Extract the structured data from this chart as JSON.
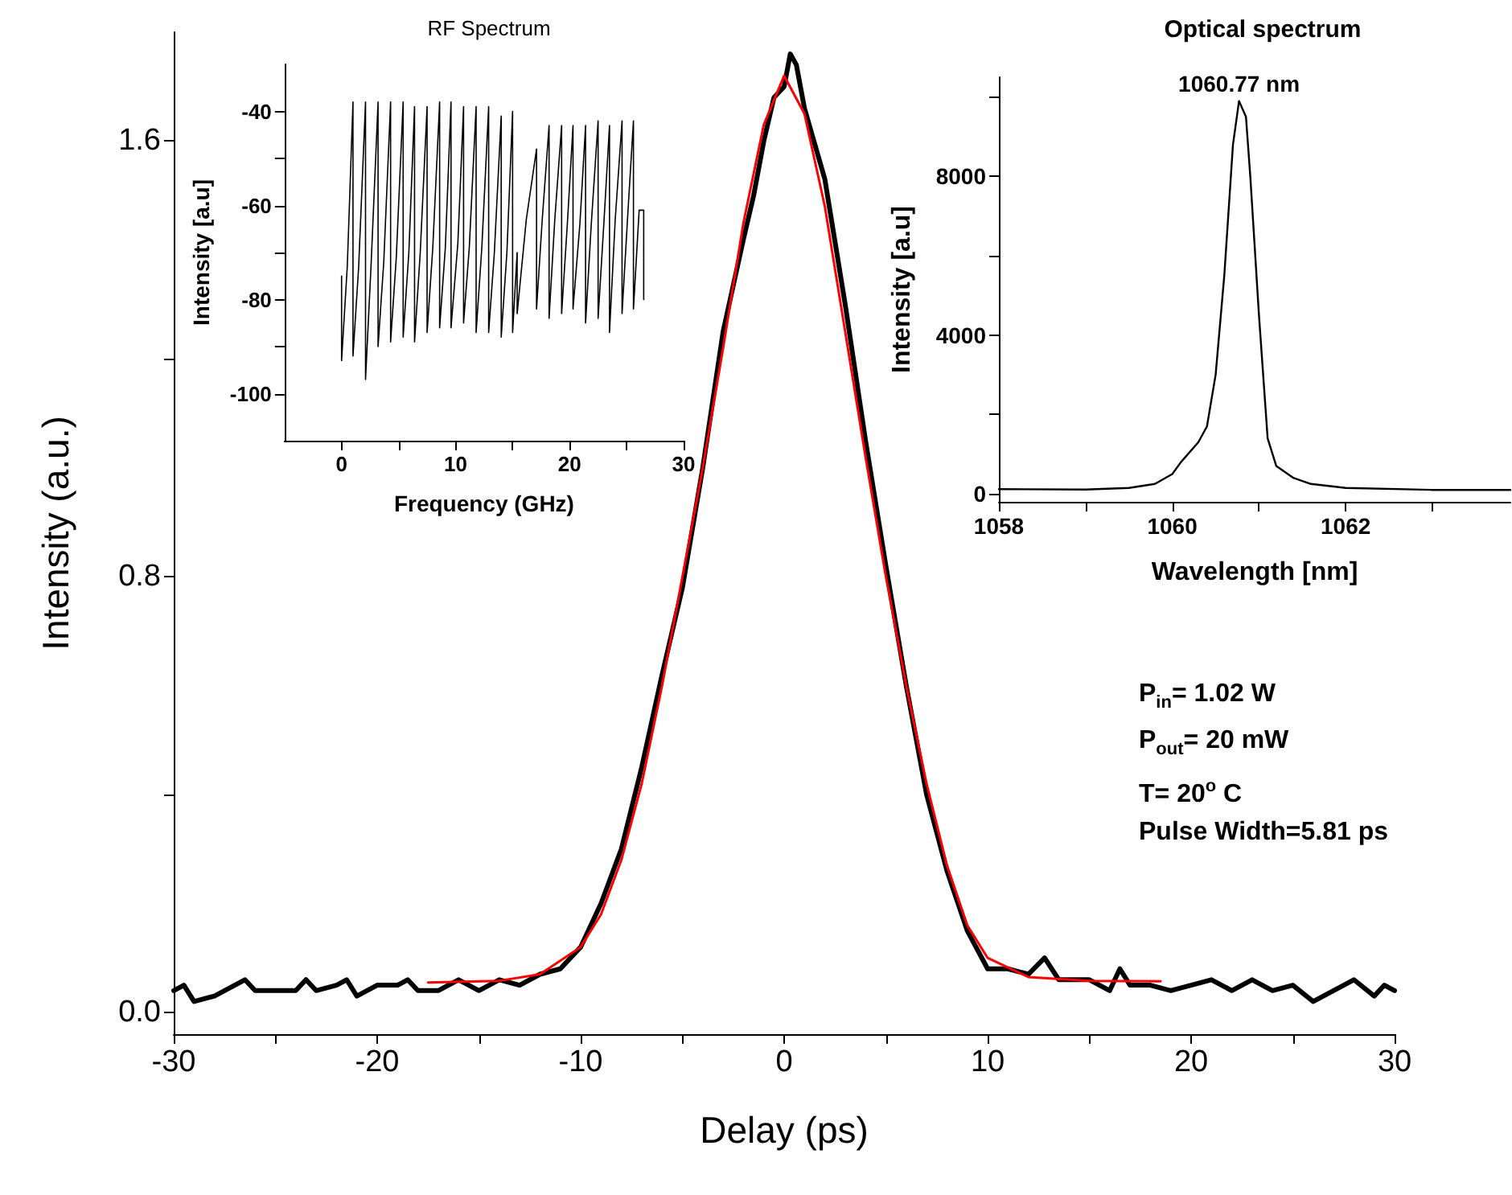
{
  "chart_data": [
    {
      "type": "line",
      "xlabel": "Delay (ps)",
      "ylabel": "Intensity (a.u.)",
      "xlim": [
        -30,
        30
      ],
      "xticks": [
        -30,
        {
          "value": -25,
          "label": null
        },
        -20,
        {
          "value": -15,
          "label": null
        },
        -10,
        {
          "value": -5,
          "label": null
        },
        0,
        {
          "value": 5,
          "label": null
        },
        10,
        {
          "value": 15,
          "label": null
        },
        20,
        {
          "value": 25,
          "label": null
        },
        30
      ],
      "ylim": [
        -0.04,
        1.8
      ],
      "yticks": [
        {
          "value": 0,
          "label": "0.0"
        },
        {
          "value": 0.4,
          "label": null
        },
        {
          "value": 0.8,
          "label": "0.8"
        },
        {
          "value": 1.2,
          "label": null
        },
        {
          "value": 1.6,
          "label": "1.6"
        }
      ],
      "grid": false,
      "marker": "none",
      "line_style": "solid",
      "annotations": [
        "P$_{in}$= 1.02 W",
        "P$_{out}$= 20 mW",
        "T= 20$^{o}$ C",
        "Pulse Width=5.81 ps"
      ],
      "series": [
        {
          "color": "#000000",
          "x": [
            -30,
            -29.5,
            -29,
            -28,
            -27,
            -26.5,
            -26,
            -24,
            -23.5,
            -23,
            -22,
            -21.5,
            -21,
            -20,
            -19,
            -18.5,
            -18,
            -17,
            -16,
            -15,
            -14,
            -13,
            -12,
            -11,
            -10,
            -9,
            -8,
            -7,
            -6,
            -5,
            -4,
            -3,
            -2,
            -1.5,
            -1,
            -0.5,
            0,
            0.3,
            0.6,
            1,
            2,
            3,
            4,
            5,
            6,
            7,
            8,
            9,
            10,
            11,
            12,
            12.8,
            13.5,
            15,
            16,
            16.5,
            17,
            18,
            19,
            20,
            21,
            22,
            23,
            24,
            25,
            26,
            27,
            28,
            29,
            29.5,
            30
          ],
          "values": [
            0.04,
            0.05,
            0.02,
            0.03,
            0.05,
            0.06,
            0.04,
            0.04,
            0.06,
            0.04,
            0.05,
            0.06,
            0.03,
            0.05,
            0.05,
            0.06,
            0.04,
            0.04,
            0.06,
            0.04,
            0.06,
            0.05,
            0.07,
            0.08,
            0.12,
            0.2,
            0.3,
            0.45,
            0.62,
            0.78,
            1.0,
            1.25,
            1.42,
            1.5,
            1.6,
            1.68,
            1.7,
            1.76,
            1.74,
            1.66,
            1.53,
            1.3,
            1.05,
            0.82,
            0.6,
            0.4,
            0.26,
            0.15,
            0.08,
            0.08,
            0.07,
            0.1,
            0.06,
            0.06,
            0.04,
            0.08,
            0.05,
            0.05,
            0.04,
            0.05,
            0.06,
            0.04,
            0.06,
            0.04,
            0.05,
            0.02,
            0.04,
            0.06,
            0.03,
            0.05,
            0.04
          ]
        },
        {
          "color": "#ff0000",
          "x": [
            -17.5,
            -14,
            -12,
            -10,
            -9,
            -8,
            -7,
            -6,
            -5,
            -4,
            -3,
            -2,
            -1,
            0,
            1,
            2,
            3,
            4,
            5,
            6,
            7,
            8,
            9,
            10,
            12,
            15,
            18.5
          ],
          "values": [
            0.055,
            0.058,
            0.07,
            0.12,
            0.18,
            0.28,
            0.42,
            0.6,
            0.8,
            1.0,
            1.22,
            1.45,
            1.63,
            1.72,
            1.65,
            1.48,
            1.25,
            1.02,
            0.8,
            0.6,
            0.42,
            0.27,
            0.16,
            0.1,
            0.065,
            0.058,
            0.057
          ]
        }
      ]
    },
    {
      "type": "line",
      "title": "RF Spectrum",
      "xlabel": "Frequency (GHz)",
      "ylabel": "Intensity [a.u]",
      "xlim": [
        -5,
        30
      ],
      "xticks": [
        0,
        {
          "value": 5,
          "label": null
        },
        10,
        {
          "value": 15,
          "label": null
        },
        20,
        {
          "value": 25,
          "label": null
        },
        30
      ],
      "ylim": [
        -110,
        -30
      ],
      "yticks": [
        -100,
        {
          "value": -90,
          "label": null
        },
        -80,
        {
          "value": -70,
          "label": null
        },
        -60,
        {
          "value": -50,
          "label": null
        },
        -40
      ],
      "grid": false,
      "marker": "none",
      "line_style": "solid",
      "series": [
        {
          "color": "#000000",
          "x": [
            0,
            0,
            0.5,
            1.0,
            1.0,
            1.5,
            2.1,
            2.1,
            2.6,
            3.2,
            3.2,
            3.7,
            4.3,
            4.3,
            4.8,
            5.4,
            5.4,
            5.9,
            6.4,
            6.4,
            6.9,
            7.5,
            7.5,
            8.0,
            8.6,
            8.6,
            9.1,
            9.6,
            9.6,
            10.2,
            10.7,
            10.7,
            11.2,
            11.8,
            11.8,
            12.3,
            12.9,
            12.9,
            13.4,
            14.0,
            14.0,
            14.5,
            15.0,
            15.0,
            15.4,
            15.4,
            16.2,
            17.1,
            17.1,
            17.6,
            18.2,
            18.2,
            18.7,
            19.3,
            19.3,
            19.8,
            20.3,
            20.3,
            20.9,
            21.4,
            21.4,
            21.9,
            22.5,
            22.5,
            23.0,
            23.5,
            23.5,
            24.0,
            24.6,
            24.6,
            25.1,
            25.6,
            25.6,
            26.1,
            26.5,
            26.5
          ],
          "values": [
            -75,
            -93,
            -73,
            -38,
            -92,
            -73,
            -38,
            -97,
            -72,
            -38,
            -90,
            -72,
            -38,
            -89,
            -71,
            -38,
            -88,
            -70,
            -39,
            -89,
            -70,
            -39,
            -87,
            -69,
            -38,
            -86,
            -69,
            -38,
            -86,
            -68,
            -39,
            -85,
            -69,
            -39,
            -87,
            -69,
            -39,
            -87,
            -70,
            -41,
            -88,
            -70,
            -40,
            -87,
            -70,
            -83,
            -63,
            -48,
            -82,
            -63,
            -43,
            -84,
            -63,
            -43,
            -83,
            -64,
            -43,
            -82,
            -64,
            -43,
            -85,
            -64,
            -42,
            -84,
            -64,
            -43,
            -87,
            -63,
            -42,
            -83,
            -62,
            -42,
            -82,
            -61,
            -61,
            -80
          ]
        }
      ]
    },
    {
      "type": "line",
      "title": "Optical spectrum",
      "xlabel": "Wavelength [nm]",
      "ylabel": "Intensity [a.u]",
      "xlim": [
        1058,
        1063.9
      ],
      "xticks": [
        1058,
        {
          "value": 1059,
          "label": null
        },
        1060,
        {
          "value": 1061,
          "label": null
        },
        1062,
        {
          "value": 1063,
          "label": null
        }
      ],
      "ylim": [
        -200,
        10500
      ],
      "yticks": [
        0,
        {
          "value": 2000,
          "label": null
        },
        4000,
        {
          "value": 6000,
          "label": null
        },
        8000,
        {
          "value": 10000,
          "label": null
        }
      ],
      "grid": false,
      "marker": "none",
      "line_style": "solid",
      "annotations": [
        {
          "text": "1060.77 nm",
          "x": 1060.77,
          "y": 9900
        }
      ],
      "series": [
        {
          "color": "#000000",
          "x": [
            1058,
            1059,
            1059.5,
            1059.8,
            1060,
            1060.1,
            1060.3,
            1060.4,
            1060.5,
            1060.6,
            1060.7,
            1060.77,
            1060.85,
            1060.9,
            1061,
            1061.1,
            1061.2,
            1061.4,
            1061.6,
            1062,
            1063,
            1063.9
          ],
          "values": [
            120,
            110,
            150,
            250,
            500,
            800,
            1300,
            1700,
            3000,
            5500,
            8800,
            9900,
            9500,
            8000,
            4500,
            1400,
            700,
            400,
            250,
            150,
            100,
            100
          ]
        }
      ]
    }
  ]
}
